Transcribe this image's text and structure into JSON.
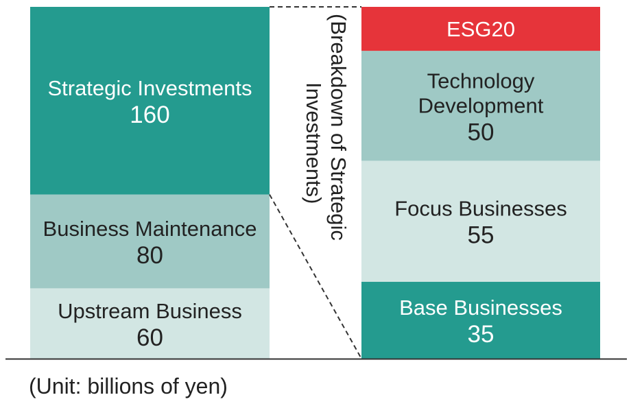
{
  "chart_data": {
    "type": "bar",
    "stacks": [
      {
        "name": "",
        "segments": [
          {
            "label": "Upstream Business",
            "value": 60,
            "color": "#d2e6e3",
            "text_color": "#222222"
          },
          {
            "label": "Business Maintenance",
            "value": 80,
            "color": "#9fc9c5",
            "text_color": "#222222"
          },
          {
            "label": "Strategic Investments",
            "value": 160,
            "color": "#249b8f",
            "text_color": "#ffffff"
          }
        ]
      },
      {
        "name": "",
        "segments": [
          {
            "label": "Base Businesses",
            "value": 35,
            "color": "#249b8f",
            "text_color": "#ffffff"
          },
          {
            "label": "Focus Businesses",
            "value": 55,
            "color": "#d2e6e3",
            "text_color": "#222222"
          },
          {
            "label": "Technology Development",
            "value": 50,
            "color": "#9fc9c5",
            "text_color": "#222222"
          },
          {
            "label": "ESG20",
            "value": 20,
            "color": "#e6343a",
            "text_color": "#ffffff"
          }
        ]
      }
    ],
    "bracket_label": "(Breakdown of Strategic Investments)",
    "unit_note": "(Unit: billions of yen)",
    "grid": false,
    "legend": "none"
  }
}
